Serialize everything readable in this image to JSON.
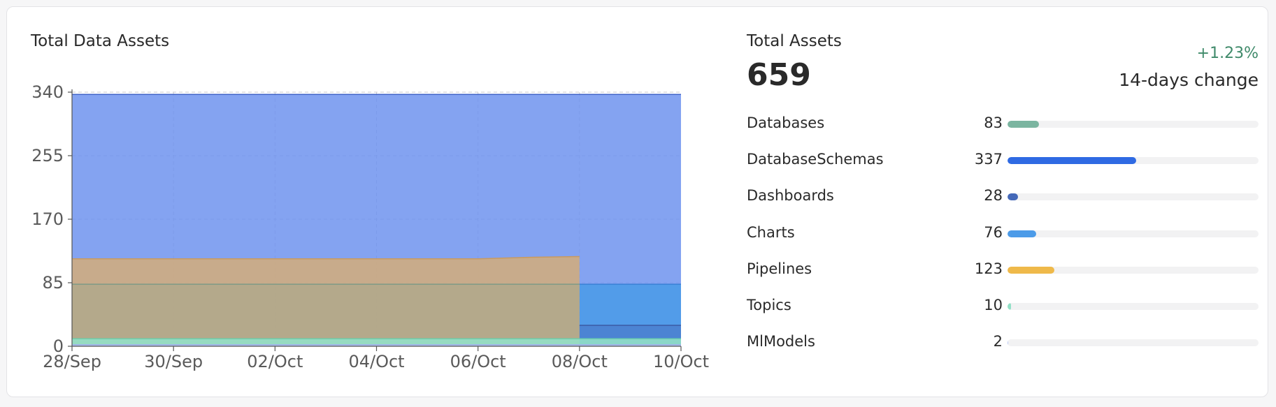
{
  "widget": {
    "chart_title": "Total Data Assets",
    "summary_title": "Total Assets",
    "total": "659",
    "change": "+1.23%",
    "change_label": "14-days change"
  },
  "assets": [
    {
      "name": "Databases",
      "count": "83",
      "value": 83,
      "color": "#7bb5a0"
    },
    {
      "name": "DatabaseSchemas",
      "count": "337",
      "value": 337,
      "color": "#2f6ae3"
    },
    {
      "name": "Dashboards",
      "count": "28",
      "value": 28,
      "color": "#4468b8"
    },
    {
      "name": "Charts",
      "count": "76",
      "value": 76,
      "color": "#4c9be8"
    },
    {
      "name": "Pipelines",
      "count": "123",
      "value": 123,
      "color": "#efb94a"
    },
    {
      "name": "Topics",
      "count": "10",
      "value": 10,
      "color": "#92e0c6"
    },
    {
      "name": "MlModels",
      "count": "2",
      "value": 2,
      "color": "#b9c7f4"
    }
  ],
  "chart_data": {
    "type": "area",
    "x": [
      "28/Sep",
      "29/Sep",
      "30/Sep",
      "01/Oct",
      "02/Oct",
      "03/Oct",
      "04/Oct",
      "05/Oct",
      "06/Oct",
      "07/Oct",
      "08/Oct",
      "09/Oct",
      "10/Oct"
    ],
    "xticks": [
      "28/Sep",
      "30/Sep",
      "02/Oct",
      "04/Oct",
      "06/Oct",
      "08/Oct",
      "10/Oct"
    ],
    "yticks": [
      0,
      85,
      170,
      255,
      340
    ],
    "ylim": [
      0,
      340
    ],
    "grid": true,
    "series": [
      {
        "values": [
          337,
          337,
          337,
          337,
          337,
          337,
          337,
          337,
          337,
          337,
          337,
          337,
          337
        ],
        "color": "#6f93ee",
        "stroke": "#3f63c9",
        "opacity": 0.85
      },
      {
        "values": [
          null,
          null,
          null,
          null,
          null,
          null,
          null,
          null,
          null,
          null,
          83,
          83,
          83
        ],
        "color": "#4c9be8",
        "stroke": "#3a80d6",
        "opacity": 0.9
      },
      {
        "values": [
          117,
          117,
          117,
          117,
          117,
          117,
          117,
          117,
          117,
          119,
          120,
          null,
          null
        ],
        "color": "#d2ac7c",
        "stroke": "#c89a60",
        "opacity": 0.88
      },
      {
        "values": [
          83,
          83,
          83,
          83,
          83,
          83,
          83,
          83,
          83,
          83,
          83,
          null,
          null
        ],
        "color": "#8fa58c",
        "stroke": "#7d9a86",
        "opacity": 0.35
      },
      {
        "values": [
          null,
          null,
          null,
          null,
          null,
          null,
          null,
          null,
          null,
          null,
          28,
          28,
          28
        ],
        "color": "#4468b8",
        "stroke": "#3b5ba5",
        "opacity": 0.45
      },
      {
        "values": [
          10,
          10,
          10,
          10,
          10,
          10,
          10,
          10,
          10,
          10,
          10,
          10,
          10
        ],
        "color": "#92e0c6",
        "stroke": "#6cd0ad",
        "opacity": 0.9
      },
      {
        "values": [
          2,
          2,
          2,
          2,
          2,
          2,
          2,
          2,
          2,
          2,
          2,
          2,
          2
        ],
        "color": "#b9c7f4",
        "stroke": "#9fb0ea",
        "opacity": 0.9
      }
    ]
  }
}
